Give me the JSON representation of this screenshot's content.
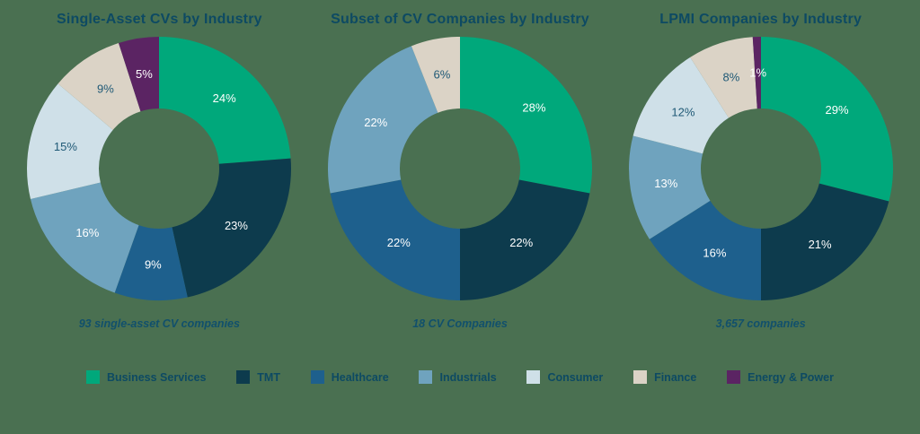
{
  "background_color": "#4A7051",
  "title_color": "#0D4A63",
  "slice_label_colors": {
    "light": "#FFFFFF",
    "dark": "#1F5976"
  },
  "legend": [
    {
      "label": "Business Services",
      "color": "#00A87B"
    },
    {
      "label": "TMT",
      "color": "#0D3B4D"
    },
    {
      "label": "Healthcare",
      "color": "#1E608D"
    },
    {
      "label": "Industrials",
      "color": "#6FA3BE"
    },
    {
      "label": "Consumer",
      "color": "#CFE0E8"
    },
    {
      "label": "Finance",
      "color": "#DBD3C6"
    },
    {
      "label": "Energy & Power",
      "color": "#5B2463"
    }
  ],
  "chart_data": [
    {
      "type": "pie",
      "subtype": "donut",
      "title": "Single-Asset CVs by Industry",
      "caption": "93 single-asset CV companies",
      "unit": "%",
      "slices": [
        {
          "category": "Business Services",
          "value": 24,
          "label": "24%",
          "label_shade": "light"
        },
        {
          "category": "TMT",
          "value": 23,
          "label": "23%",
          "label_shade": "light"
        },
        {
          "category": "Healthcare",
          "value": 9,
          "label": "9%",
          "label_shade": "light"
        },
        {
          "category": "Industrials",
          "value": 16,
          "label": "16%",
          "label_shade": "light"
        },
        {
          "category": "Consumer",
          "value": 15,
          "label": "15%",
          "label_shade": "dark"
        },
        {
          "category": "Finance",
          "value": 9,
          "label": "9%",
          "label_shade": "dark"
        },
        {
          "category": "Energy & Power",
          "value": 5,
          "label": "5%",
          "label_shade": "light"
        }
      ]
    },
    {
      "type": "pie",
      "subtype": "donut",
      "title": "Subset of CV Companies by Industry",
      "caption": "18 CV Companies",
      "unit": "%",
      "slices": [
        {
          "category": "Business Services",
          "value": 28,
          "label": "28%",
          "label_shade": "light"
        },
        {
          "category": "TMT",
          "value": 22,
          "label": "22%",
          "label_shade": "light"
        },
        {
          "category": "Healthcare",
          "value": 22,
          "label": "22%",
          "label_shade": "light"
        },
        {
          "category": "Industrials",
          "value": 22,
          "label": "22%",
          "label_shade": "light"
        },
        {
          "category": "Finance",
          "value": 6,
          "label": "6%",
          "label_shade": "dark"
        }
      ]
    },
    {
      "type": "pie",
      "subtype": "donut",
      "title": "LPMI Companies by Industry",
      "caption": "3,657 companies",
      "unit": "%",
      "slices": [
        {
          "category": "Business Services",
          "value": 29,
          "label": "29%",
          "label_shade": "light"
        },
        {
          "category": "TMT",
          "value": 21,
          "label": "21%",
          "label_shade": "light"
        },
        {
          "category": "Healthcare",
          "value": 16,
          "label": "16%",
          "label_shade": "light"
        },
        {
          "category": "Industrials",
          "value": 13,
          "label": "13%",
          "label_shade": "light"
        },
        {
          "category": "Consumer",
          "value": 12,
          "label": "12%",
          "label_shade": "dark"
        },
        {
          "category": "Finance",
          "value": 8,
          "label": "8%",
          "label_shade": "dark"
        },
        {
          "category": "Energy & Power",
          "value": 1,
          "label": "1%",
          "label_shade": "light"
        }
      ]
    }
  ]
}
